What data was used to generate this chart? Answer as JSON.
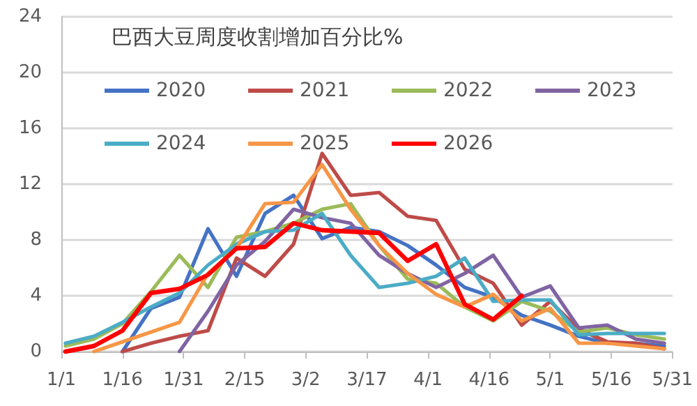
{
  "chart_data": {
    "type": "line",
    "title": "巴西大豆周度收割增加百分比%",
    "x": [
      "--01-02",
      "--01-09",
      "--01-16",
      "--01-23",
      "--01-30",
      "--02-06",
      "--02-13",
      "--02-20",
      "--02-27",
      "--03-06",
      "--03-13",
      "--03-20",
      "--03-27",
      "--04-03",
      "--04-10",
      "--04-17",
      "--04-24",
      "--05-01",
      "--05-08",
      "--05-15",
      "--05-22",
      "--05-29"
    ],
    "series": [
      {
        "name": "2020",
        "color": "#4472c4",
        "values": [
          null,
          null,
          0,
          3.1,
          3.9,
          8.8,
          5.4,
          9.9,
          11.2,
          8.1,
          8.9,
          8.6,
          7.6,
          6.2,
          4.6,
          3.9,
          2.6,
          1.9,
          1.1,
          0.6,
          0.6,
          0.4
        ]
      },
      {
        "name": "2021",
        "color": "#be4b48",
        "values": [
          null,
          null,
          0,
          0.6,
          1.1,
          1.5,
          6.7,
          5.4,
          7.7,
          14.2,
          11.2,
          11.4,
          9.7,
          9.4,
          5.9,
          4.9,
          1.9,
          3.6,
          1.6,
          0.7,
          0.6,
          0.2
        ]
      },
      {
        "name": "2022",
        "color": "#9bbb59",
        "values": [
          0.4,
          0.9,
          2.0,
          4.3,
          6.9,
          4.6,
          8.2,
          8.6,
          9.2,
          10.2,
          10.6,
          7.6,
          5.2,
          4.9,
          3.2,
          2.2,
          3.6,
          2.9,
          1.4,
          1.7,
          1.2,
          0.9
        ]
      },
      {
        "name": "2023",
        "color": "#8064a2",
        "values": [
          null,
          null,
          null,
          null,
          0,
          2.9,
          6.2,
          7.9,
          10.2,
          9.6,
          9.2,
          6.9,
          5.6,
          4.6,
          5.6,
          6.9,
          3.9,
          4.7,
          1.7,
          1.9,
          0.9,
          0.6
        ]
      },
      {
        "name": "2024",
        "color": "#4bacc6",
        "values": [
          0.6,
          1.1,
          2.1,
          3.2,
          4.2,
          6.2,
          7.7,
          8.6,
          8.7,
          9.9,
          6.9,
          4.6,
          4.9,
          5.4,
          6.7,
          3.6,
          3.7,
          3.7,
          1.2,
          1.3,
          1.3,
          1.3
        ]
      },
      {
        "name": "2025",
        "color": "#f79646",
        "values": [
          null,
          0,
          0.7,
          1.4,
          2.1,
          5.6,
          7.4,
          10.6,
          10.7,
          13.4,
          10.2,
          7.6,
          5.6,
          4.1,
          3.2,
          4.1,
          2.2,
          3.1,
          0.6,
          0.6,
          0.4,
          0.2
        ]
      },
      {
        "name": "2026",
        "color": "#ff0000",
        "values": [
          0,
          0.4,
          1.5,
          4.2,
          4.5,
          5.5,
          7.4,
          7.5,
          9.2,
          8.7,
          8.6,
          8.5,
          6.5,
          7.7,
          3.4,
          2.3,
          4.0,
          null,
          null,
          null,
          null,
          null
        ]
      }
    ],
    "xlim": [
      "--01-01",
      "--05-31"
    ],
    "xticks": [
      {
        "value": "--01-01",
        "label": "1/1"
      },
      {
        "value": "--01-16",
        "label": "1/16"
      },
      {
        "value": "--01-31",
        "label": "1/31"
      },
      {
        "value": "--02-15",
        "label": "2/15"
      },
      {
        "value": "--03-02",
        "label": "3/2"
      },
      {
        "value": "--03-17",
        "label": "3/17"
      },
      {
        "value": "--04-01",
        "label": "4/1"
      },
      {
        "value": "--04-16",
        "label": "4/16"
      },
      {
        "value": "--05-01",
        "label": "5/1"
      },
      {
        "value": "--05-16",
        "label": "5/16"
      },
      {
        "value": "--05-31",
        "label": "5/31"
      }
    ],
    "ylim": [
      0,
      24
    ],
    "yticks": [
      0,
      4,
      8,
      12,
      16,
      20,
      24
    ],
    "grid": "y",
    "legend": "top",
    "marker": "none",
    "line_style": "solid"
  }
}
